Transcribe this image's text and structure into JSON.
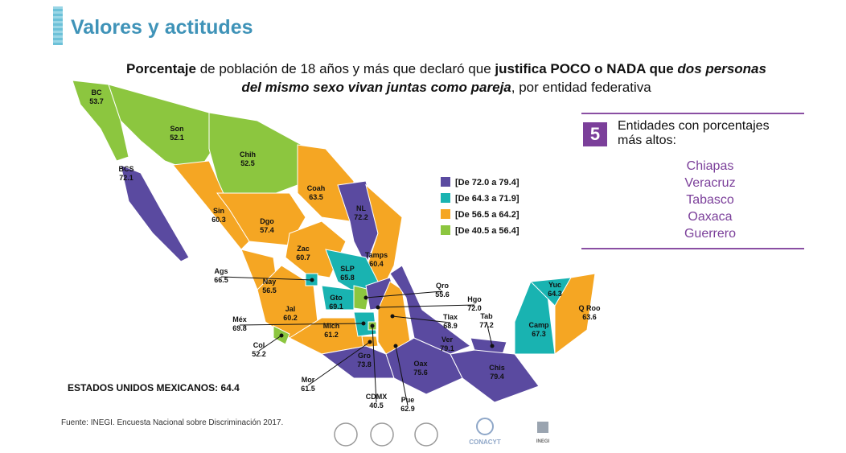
{
  "header": {
    "title": "Valores y actitudes"
  },
  "subtitle": [
    {
      "text": "Porcentaje",
      "style": "bold"
    },
    {
      "text": " de población de 18 años y más que declaró que ",
      "style": "normal"
    },
    {
      "text": "justifica POCO o NADA que ",
      "style": "bold"
    },
    {
      "text": "dos personas del mismo sexo vivan juntas como pareja",
      "style": "bold-italic"
    },
    {
      "text": ", por entidad federativa",
      "style": "normal"
    }
  ],
  "legend": [
    {
      "label": "[De 72.0 a 79.4]",
      "color": "#5a4aa0"
    },
    {
      "label": "[De 64.3 a 71.9]",
      "color": "#19b3b1"
    },
    {
      "label": "[De 56.5 a 64.2]",
      "color": "#f5a623"
    },
    {
      "label": "[De 40.5 a 56.4]",
      "color": "#8cc63f"
    }
  ],
  "states": [
    {
      "code": "BC",
      "value": 53.7,
      "color": "#8cc63f"
    },
    {
      "code": "BCS",
      "value": 72.1,
      "color": "#5a4aa0"
    },
    {
      "code": "Son",
      "value": 52.1,
      "color": "#8cc63f"
    },
    {
      "code": "Chih",
      "value": 52.5,
      "color": "#8cc63f"
    },
    {
      "code": "Coah",
      "value": 63.5,
      "color": "#f5a623"
    },
    {
      "code": "NL",
      "value": 72.2,
      "color": "#5a4aa0"
    },
    {
      "code": "Tamps",
      "value": 60.4,
      "color": "#f5a623"
    },
    {
      "code": "Sin",
      "value": 60.3,
      "color": "#f5a623"
    },
    {
      "code": "Dgo",
      "value": 57.4,
      "color": "#f5a623"
    },
    {
      "code": "Zac",
      "value": 60.7,
      "color": "#f5a623"
    },
    {
      "code": "SLP",
      "value": 65.8,
      "color": "#19b3b1"
    },
    {
      "code": "Nay",
      "value": 56.5,
      "color": "#f5a623"
    },
    {
      "code": "Jal",
      "value": 60.2,
      "color": "#f5a623"
    },
    {
      "code": "Ags",
      "value": 66.5,
      "color": "#19b3b1"
    },
    {
      "code": "Gto",
      "value": 69.1,
      "color": "#19b3b1"
    },
    {
      "code": "Qro",
      "value": 55.6,
      "color": "#8cc63f"
    },
    {
      "code": "Hgo",
      "value": 72.0,
      "value_label": "72.0",
      "color": "#5a4aa0"
    },
    {
      "code": "Mich",
      "value": 61.2,
      "color": "#f5a623"
    },
    {
      "code": "Col",
      "value": 52.2,
      "color": "#8cc63f"
    },
    {
      "code": "Méx",
      "value": 69.8,
      "color": "#19b3b1"
    },
    {
      "code": "CDMX",
      "value": 40.5,
      "color": "#8cc63f"
    },
    {
      "code": "Tlax",
      "value": 68.9,
      "color": "#19b3b1"
    },
    {
      "code": "Mor",
      "value": 61.5,
      "color": "#f5a623"
    },
    {
      "code": "Pue",
      "value": 62.9,
      "color": "#f5a623"
    },
    {
      "code": "Gro",
      "value": 73.8,
      "color": "#5a4aa0"
    },
    {
      "code": "Oax",
      "value": 75.6,
      "color": "#5a4aa0"
    },
    {
      "code": "Ver",
      "value": 79.1,
      "color": "#5a4aa0"
    },
    {
      "code": "Tab",
      "value": 77.2,
      "color": "#5a4aa0"
    },
    {
      "code": "Chis",
      "value": 79.4,
      "color": "#5a4aa0"
    },
    {
      "code": "Camp",
      "value": 67.3,
      "color": "#19b3b1"
    },
    {
      "code": "Yuc",
      "value": 64.3,
      "color": "#19b3b1"
    },
    {
      "code": "Q Roo",
      "value": 63.6,
      "color": "#f5a623"
    }
  ],
  "national": {
    "label": "ESTADOS UNIDOS MEXICANOS:",
    "value": 64.4
  },
  "top5": {
    "number": "5",
    "heading": "Entidades con porcentajes más altos:",
    "items": [
      "Chiapas",
      "Veracruz",
      "Tabasco",
      "Oaxaca",
      "Guerrero"
    ]
  },
  "source": "Fuente: INEGI. Encuesta Nacional sobre Discriminación 2017.",
  "logos": [
    "CONACYT",
    "INEGI"
  ]
}
